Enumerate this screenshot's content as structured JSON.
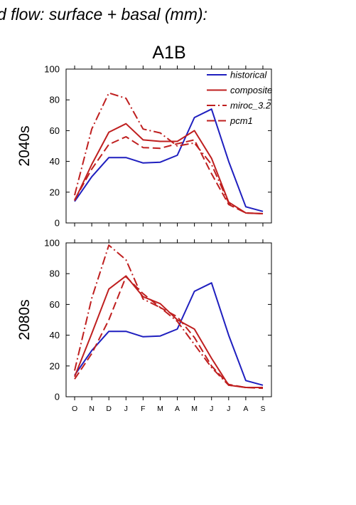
{
  "figure": {
    "title": "d flow: surface + basal (mm):",
    "scenario": "A1B"
  },
  "colors": {
    "historical": "#1f1fbf",
    "projection": "#bf1f1f"
  },
  "chart_data": [
    {
      "type": "line",
      "panel_label": "2040s",
      "categories": [
        "O",
        "N",
        "D",
        "J",
        "F",
        "M",
        "A",
        "M",
        "J",
        "J",
        "A",
        "S"
      ],
      "ylim": [
        0,
        100
      ],
      "yticks": [
        0,
        20,
        40,
        60,
        80,
        100
      ],
      "legend": "top-right",
      "series": [
        {
          "name": "historical",
          "style": "solid",
          "color": "#1f1fbf",
          "values": [
            14,
            30,
            42.5,
            42.5,
            39,
            39.5,
            44,
            68.5,
            74,
            40,
            10.5,
            7.5
          ]
        },
        {
          "name": "composite",
          "style": "solid",
          "color": "#bf1f1f",
          "values": [
            14.5,
            38,
            59,
            64.5,
            54,
            53,
            53,
            60,
            42,
            13.5,
            6.5,
            6
          ]
        },
        {
          "name": "miroc_3.2",
          "style": "dashdot",
          "color": "#bf1f1f",
          "values": [
            18,
            61,
            84.5,
            81,
            61,
            58.5,
            50,
            52,
            38,
            13,
            6.5,
            6
          ]
        },
        {
          "name": "pcm1",
          "style": "dash",
          "color": "#bf1f1f",
          "values": [
            15,
            35,
            51,
            56,
            49,
            48.5,
            51.5,
            54,
            32,
            12,
            6.5,
            6
          ]
        }
      ]
    },
    {
      "type": "line",
      "panel_label": "2080s",
      "categories": [
        "O",
        "N",
        "D",
        "J",
        "F",
        "M",
        "A",
        "M",
        "J",
        "J",
        "A",
        "S"
      ],
      "ylim": [
        0,
        100
      ],
      "yticks": [
        0,
        20,
        40,
        60,
        80,
        100
      ],
      "series": [
        {
          "name": "historical",
          "style": "solid",
          "color": "#1f1fbf",
          "values": [
            14,
            30,
            42.5,
            42.5,
            39,
            39.5,
            44,
            68.5,
            74,
            40,
            10.5,
            7.5
          ]
        },
        {
          "name": "composite",
          "style": "solid",
          "color": "#bf1f1f",
          "values": [
            13,
            41,
            70,
            78.5,
            65,
            60.5,
            50,
            44,
            25,
            7.5,
            6,
            6
          ]
        },
        {
          "name": "miroc_3.2",
          "style": "dashdot",
          "color": "#bf1f1f",
          "values": [
            17,
            64,
            98.5,
            89,
            63.5,
            58,
            49,
            34,
            19,
            7.5,
            6,
            6
          ]
        },
        {
          "name": "pcm1",
          "style": "dash",
          "color": "#bf1f1f",
          "values": [
            11.5,
            28,
            50,
            78,
            67,
            58,
            52,
            38.5,
            20,
            8,
            6,
            5.5
          ]
        }
      ]
    }
  ]
}
